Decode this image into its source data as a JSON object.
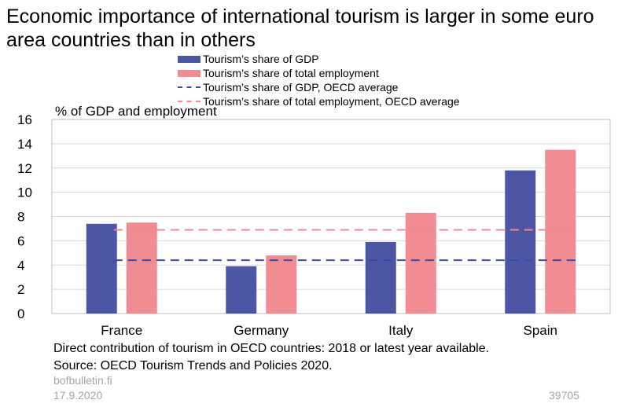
{
  "title": "Economic importance of international tourism is larger in some euro area countries than in others",
  "legend": [
    {
      "label": "Tourism’s share of GDP",
      "kind": "bar",
      "color": "#4d55a5"
    },
    {
      "label": "Tourism’s share of total employment",
      "kind": "bar",
      "color": "#f28c93"
    },
    {
      "label": "Tourism’s share of GDP, OECD average",
      "kind": "dash",
      "color": "#3e4aa0"
    },
    {
      "label": "Tourism’s share of total employment, OECD average",
      "kind": "dash",
      "color": "#f08a93"
    }
  ],
  "chart_data": {
    "type": "bar",
    "categories": [
      "France",
      "Germany",
      "Italy",
      "Spain"
    ],
    "series": [
      {
        "name": "Tourism’s share of GDP",
        "values": [
          7.4,
          3.9,
          5.9,
          11.8
        ],
        "color": "#4d55a5"
      },
      {
        "name": "Tourism’s share of total employment",
        "values": [
          7.5,
          4.8,
          8.3,
          13.5
        ],
        "color": "#f28c93"
      }
    ],
    "reference_lines": [
      {
        "name": "Tourism’s share of GDP, OECD average",
        "value": 4.4,
        "color": "#3e4aa0"
      },
      {
        "name": "Tourism’s share of total employment, OECD average",
        "value": 6.9,
        "color": "#f08a93"
      }
    ],
    "ylabel": "% of GDP and employment",
    "ylim": [
      0,
      16
    ],
    "yticks": [
      0,
      2,
      4,
      6,
      8,
      10,
      12,
      14,
      16
    ],
    "grid": true
  },
  "notes": {
    "line1": "Direct contribution of tourism in OECD countries: 2018 or latest year available.",
    "line2": "Source: OECD Tourism Trends and Policies 2020."
  },
  "footer": {
    "site": "bofbulletin.fi",
    "date": "17.9.2020",
    "id": "39705"
  }
}
